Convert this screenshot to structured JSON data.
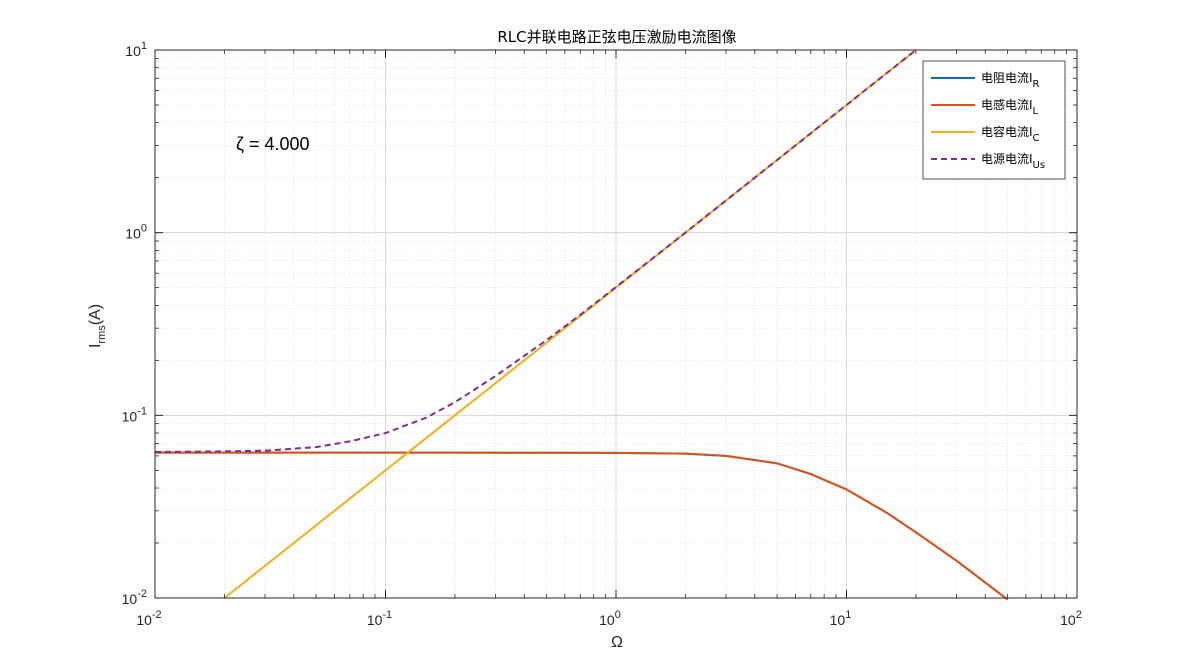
{
  "chart_data": {
    "type": "line",
    "title": "RLC并联电路正弦电压激励电流图像",
    "xlabel": "Ω",
    "ylabel": "I_rms(A)",
    "ylabel_main": "I",
    "ylabel_sub": "rms",
    "ylabel_suffix": "(A)",
    "xscale": "log",
    "yscale": "log",
    "xlim": [
      0.01,
      100
    ],
    "ylim": [
      0.01,
      10
    ],
    "grid": true,
    "minor_grid": true,
    "x_ticks": [
      {
        "value": 0.01,
        "base": "10",
        "exp": "-2"
      },
      {
        "value": 0.1,
        "base": "10",
        "exp": "-1"
      },
      {
        "value": 1,
        "base": "10",
        "exp": "0"
      },
      {
        "value": 10,
        "base": "10",
        "exp": "1"
      },
      {
        "value": 100,
        "base": "10",
        "exp": "2"
      }
    ],
    "y_ticks": [
      {
        "value": 0.01,
        "base": "10",
        "exp": "-2"
      },
      {
        "value": 0.1,
        "base": "10",
        "exp": "-1"
      },
      {
        "value": 1,
        "base": "10",
        "exp": "0"
      },
      {
        "value": 10,
        "base": "10",
        "exp": "1"
      }
    ],
    "legend_position": "top-right",
    "annotation": "ζ = 4.000",
    "series": [
      {
        "name": "电阻电流I_R",
        "label_main": "电阻电流I",
        "label_sub": "R",
        "color": "#0072BD",
        "dash": "solid",
        "x": [
          0.01,
          0.02,
          0.05,
          0.1,
          0.2,
          0.5,
          1,
          2,
          3,
          5,
          7,
          10,
          15,
          20,
          30,
          50
        ],
        "y": [
          0.0625,
          0.0625,
          0.0625,
          0.0625,
          0.0625,
          0.0624,
          0.0623,
          0.0617,
          0.06,
          0.0546,
          0.0477,
          0.0393,
          0.0292,
          0.0229,
          0.016,
          0.0098
        ]
      },
      {
        "name": "电感电流I_L",
        "label_main": "电感电流I",
        "label_sub": "L",
        "color": "#D95319",
        "dash": "solid",
        "x": [
          0.01,
          0.02,
          0.05,
          0.1,
          0.2,
          0.5,
          1,
          2,
          3,
          5,
          7,
          10,
          15,
          20,
          30,
          50
        ],
        "y": [
          0.0625,
          0.0625,
          0.0625,
          0.0625,
          0.0625,
          0.0624,
          0.0623,
          0.0617,
          0.06,
          0.0546,
          0.0477,
          0.0393,
          0.0292,
          0.0229,
          0.016,
          0.0098
        ]
      },
      {
        "name": "电容电流I_C",
        "label_main": "电容电流I",
        "label_sub": "C",
        "color": "#EDB120",
        "dash": "solid",
        "x": [
          0.02,
          0.05,
          0.1,
          0.2,
          0.5,
          1,
          2,
          5,
          10,
          20
        ],
        "y": [
          0.01,
          0.025,
          0.05,
          0.1,
          0.25,
          0.5,
          1,
          2.5,
          5,
          10
        ]
      },
      {
        "name": "电源电流I_Us",
        "label_main": "电源电流I",
        "label_sub": "Us",
        "color": "#7E2F8E",
        "dash": "dashed",
        "x": [
          0.01,
          0.02,
          0.03,
          0.05,
          0.07,
          0.1,
          0.15,
          0.2,
          0.3,
          0.5,
          0.7,
          1,
          2,
          5,
          10,
          20
        ],
        "y": [
          0.063,
          0.0635,
          0.064,
          0.067,
          0.072,
          0.08,
          0.097,
          0.118,
          0.164,
          0.258,
          0.355,
          0.504,
          1.0,
          2.5,
          5.0,
          10.0
        ]
      }
    ]
  }
}
